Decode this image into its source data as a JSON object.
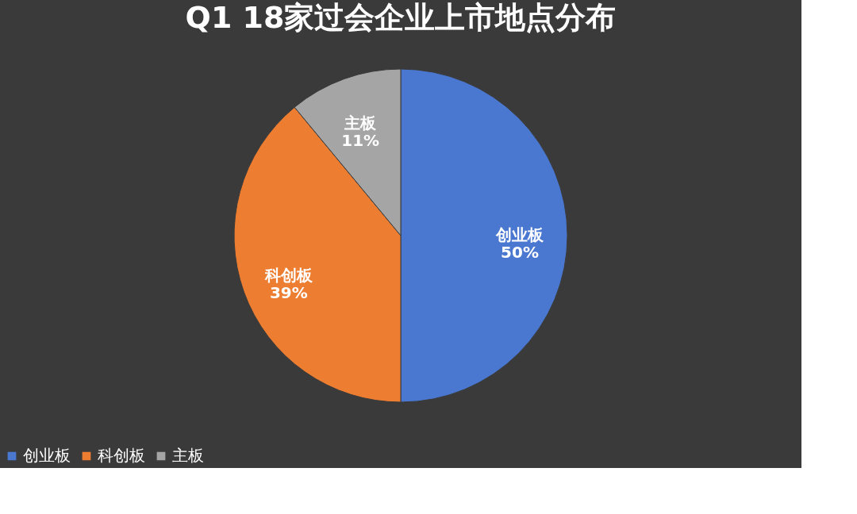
{
  "chart_data": {
    "type": "pie",
    "title": "Q1 18家过会企业上市地点分布",
    "categories": [
      "创业板",
      "科创板",
      "主板"
    ],
    "values": [
      50,
      39,
      11
    ],
    "colors": [
      "#4a78d0",
      "#ed7d31",
      "#a5a5a5"
    ],
    "value_labels": [
      "50%",
      "39%",
      "11%"
    ],
    "legend": "bottom"
  }
}
